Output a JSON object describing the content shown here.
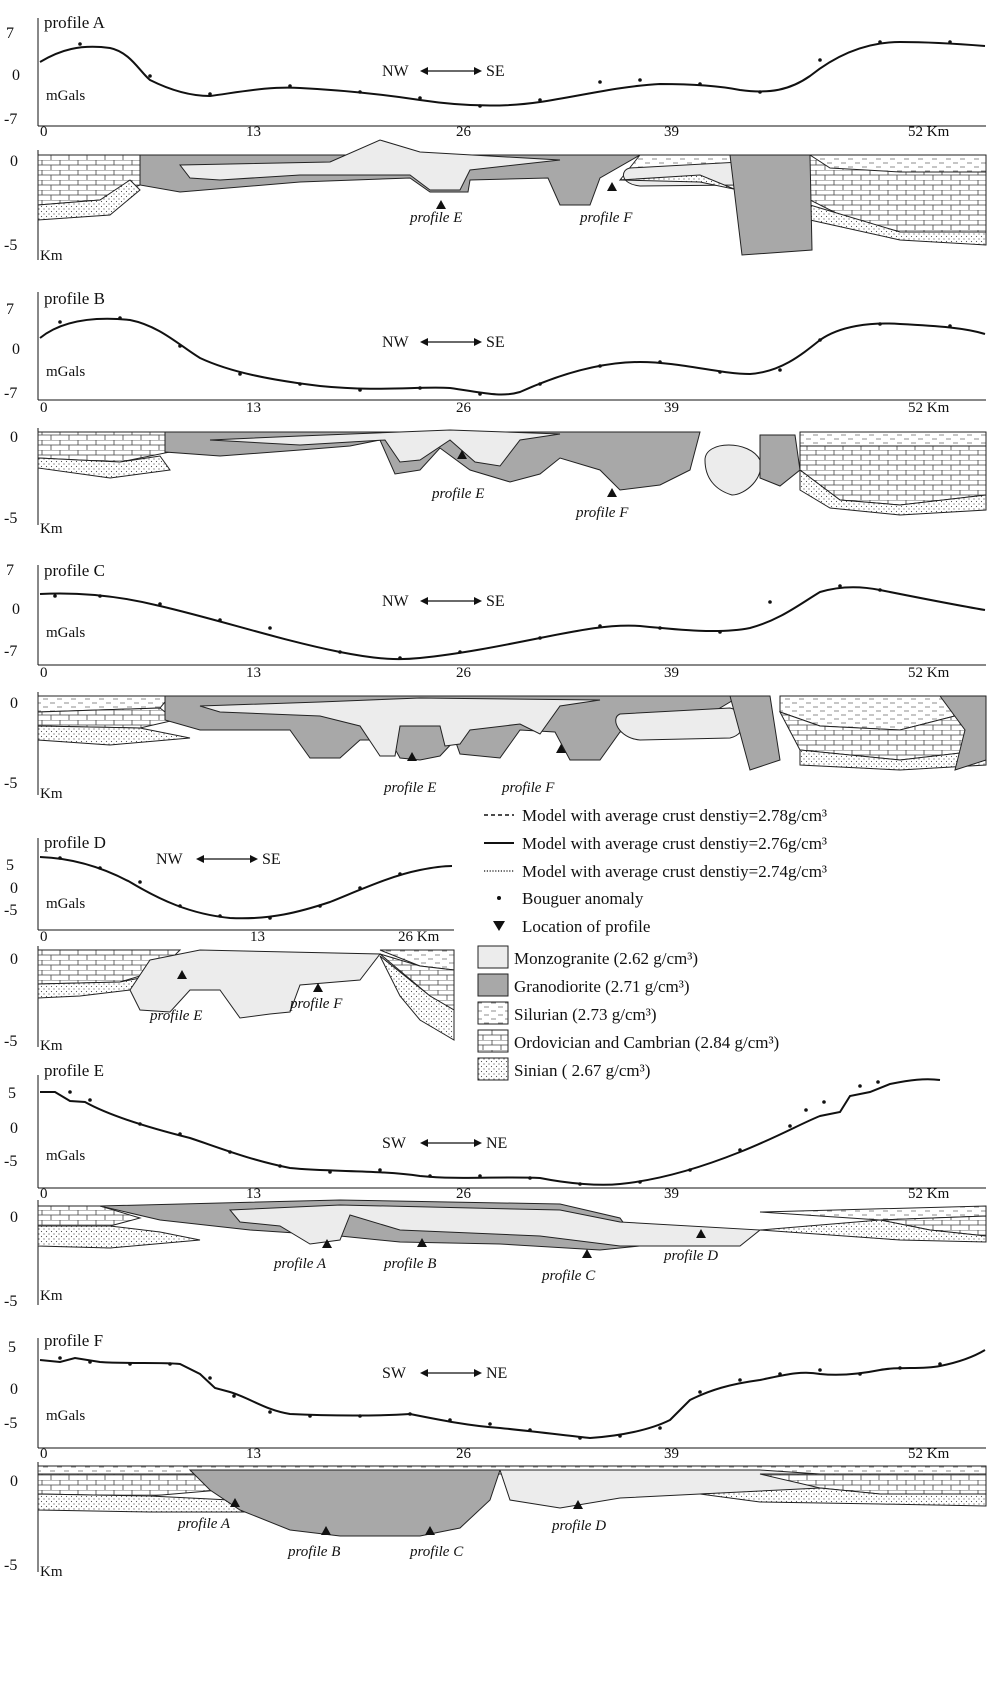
{
  "figure": {
    "profiles": [
      {
        "name": "profile A",
        "direction": {
          "left": "NW",
          "right": "SE"
        },
        "gravity_ticks": [
          "7",
          "0",
          "-7"
        ],
        "gravity_unit": "mGals",
        "distance_ticks": [
          "0",
          "13",
          "26",
          "39",
          "52 Km"
        ],
        "depth_ticks": [
          "0",
          "-5"
        ],
        "depth_unit": "Km",
        "intersections": [
          "profile E",
          "profile F"
        ]
      },
      {
        "name": "profile B",
        "direction": {
          "left": "NW",
          "right": "SE"
        },
        "gravity_ticks": [
          "7",
          "0",
          "-7"
        ],
        "gravity_unit": "mGals",
        "distance_ticks": [
          "0",
          "13",
          "26",
          "39",
          "52 Km"
        ],
        "depth_ticks": [
          "0",
          "-5"
        ],
        "depth_unit": "Km",
        "intersections": [
          "profile E",
          "profile F"
        ]
      },
      {
        "name": "profile C",
        "direction": {
          "left": "NW",
          "right": "SE"
        },
        "gravity_ticks": [
          "7",
          "0",
          "-7"
        ],
        "gravity_unit": "mGals",
        "distance_ticks": [
          "0",
          "13",
          "26",
          "39",
          "52 Km"
        ],
        "depth_ticks": [
          "0",
          "-5"
        ],
        "depth_unit": "Km",
        "intersections": [
          "profile E",
          "profile F"
        ]
      },
      {
        "name": "profile D",
        "direction": {
          "left": "NW",
          "right": "SE"
        },
        "gravity_ticks": [
          "5",
          "0",
          "-5"
        ],
        "gravity_unit": "mGals",
        "distance_ticks": [
          "0",
          "13",
          "26 Km"
        ],
        "depth_ticks": [
          "0",
          "-5"
        ],
        "depth_unit": "Km",
        "intersections": [
          "profile E",
          "profile F"
        ]
      },
      {
        "name": "profile E",
        "direction": {
          "left": "SW",
          "right": "NE"
        },
        "gravity_ticks": [
          "5",
          "0",
          "-5"
        ],
        "gravity_unit": "mGals",
        "distance_ticks": [
          "0",
          "13",
          "26",
          "39",
          "52 Km"
        ],
        "depth_ticks": [
          "0",
          "-5"
        ],
        "depth_unit": "Km",
        "intersections": [
          "profile A",
          "profile B",
          "profile C",
          "profile D"
        ]
      },
      {
        "name": "profile F",
        "direction": {
          "left": "SW",
          "right": "NE"
        },
        "gravity_ticks": [
          "5",
          "0",
          "-5"
        ],
        "gravity_unit": "mGals",
        "distance_ticks": [
          "0",
          "13",
          "26",
          "39",
          "52 Km"
        ],
        "depth_ticks": [
          "0",
          "-5"
        ],
        "depth_unit": "Km",
        "intersections": [
          "profile A",
          "profile B",
          "profile C",
          "profile D"
        ]
      }
    ],
    "legend": {
      "model_278": "Model with average crust denstiy=2.78g/cm³",
      "model_276": "Model with average crust denstiy=2.76g/cm³",
      "model_274": "Model with average crust denstiy=2.74g/cm³",
      "bouguer": "Bouguer anomaly",
      "location": "Location of profile",
      "monzogranite": "Monzogranite (2.62 g/cm³)",
      "granodiorite": "Granodiorite  (2.71 g/cm³)",
      "silurian": "Silurian  (2.73 g/cm³)",
      "ordovician": "Ordovician and Cambrian  (2.84 g/cm³)",
      "sinian": "Sinian ( 2.67 g/cm³)"
    },
    "colors": {
      "monzogranite": "#ececec",
      "granodiorite": "#a8a8a8",
      "ink": "#111111"
    }
  }
}
